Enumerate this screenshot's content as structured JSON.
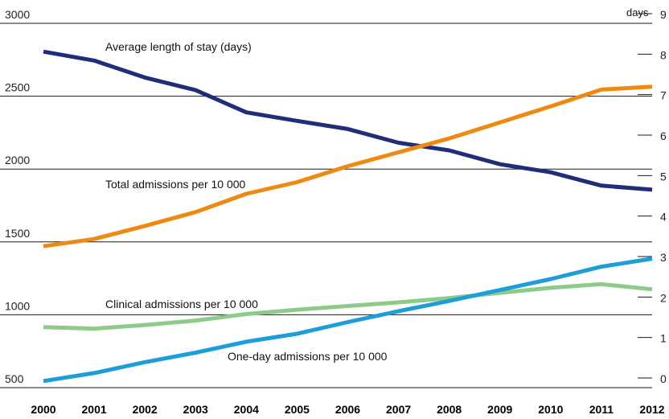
{
  "chart_data": {
    "type": "line",
    "x": [
      "2000",
      "2001",
      "2002",
      "2003",
      "2004",
      "2005",
      "2006",
      "2007",
      "2008",
      "2009",
      "2010",
      "2011",
      "2012"
    ],
    "left_axis": {
      "ylim": [
        500,
        3000
      ],
      "ticks": [
        "500",
        "1000",
        "1500",
        "2000",
        "2500",
        "3000"
      ]
    },
    "right_axis": {
      "ylim": [
        0,
        9
      ],
      "ticks": [
        "0",
        "1",
        "2",
        "3",
        "4",
        "5",
        "6",
        "7",
        "8",
        "9"
      ],
      "unit_label": "days"
    },
    "grid": "horizontal lines at left-axis ticks",
    "series": [
      {
        "name": "Average length of stay (days)",
        "axis": "right",
        "color": "#1f2d7a",
        "values": [
          8.3,
          8.08,
          7.66,
          7.35,
          6.8,
          6.59,
          6.39,
          6.05,
          5.86,
          5.52,
          5.32,
          4.99,
          4.89
        ]
      },
      {
        "name": "Total admissions per 10 000",
        "axis": "left",
        "color": "#ee8a12",
        "values": [
          1470,
          1520,
          1610,
          1705,
          1830,
          1910,
          2020,
          2115,
          2210,
          2320,
          2430,
          2545,
          2565
        ]
      },
      {
        "name": "Clinical admissions per 10 000",
        "axis": "left",
        "color": "#8ecb8a",
        "values": [
          915,
          905,
          930,
          960,
          1005,
          1035,
          1060,
          1085,
          1115,
          1150,
          1185,
          1210,
          1175
        ]
      },
      {
        "name": "One-day admissions per 10 000",
        "axis": "left",
        "color": "#1e9ed8",
        "values": [
          545,
          600,
          675,
          740,
          815,
          870,
          950,
          1025,
          1095,
          1170,
          1245,
          1330,
          1385
        ]
      }
    ]
  }
}
